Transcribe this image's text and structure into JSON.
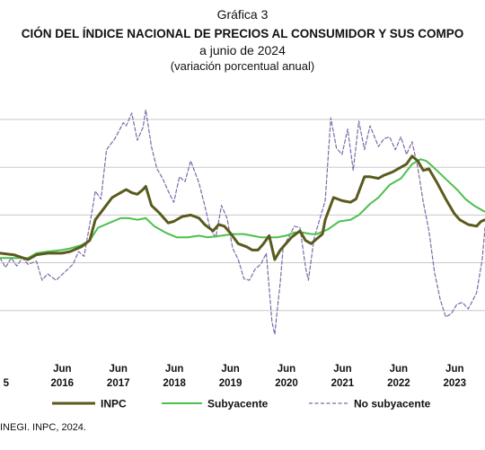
{
  "header": {
    "figure_label": "Gráfica 3",
    "title": "CIÓN DEL ÍNDICE NACIONAL DE PRECIOS AL CONSUMIDOR Y SUS COMPO",
    "subtitle": "a junio de 2024",
    "units": "(variación porcentual anual)"
  },
  "source": "INEGI. INPC, 2024.",
  "chart_data": {
    "type": "line",
    "xlim": [
      2015.35,
      2024.0
    ],
    "ylim": [
      -3.5,
      12.3
    ],
    "grid": "horizontal",
    "gridlines": [
      -1,
      2,
      5,
      8,
      11
    ],
    "ticks": [
      {
        "x": 2015.46,
        "top": "",
        "bottom": "5"
      },
      {
        "x": 2016.46,
        "top": "Jun",
        "bottom": "2016"
      },
      {
        "x": 2017.46,
        "top": "Jun",
        "bottom": "2017"
      },
      {
        "x": 2018.46,
        "top": "Jun",
        "bottom": "2018"
      },
      {
        "x": 2019.46,
        "top": "Jun",
        "bottom": "2019"
      },
      {
        "x": 2020.46,
        "top": "Jun",
        "bottom": "2020"
      },
      {
        "x": 2021.46,
        "top": "Jun",
        "bottom": "2021"
      },
      {
        "x": 2022.46,
        "top": "Jun",
        "bottom": "2022"
      },
      {
        "x": 2023.46,
        "top": "Jun",
        "bottom": "2023"
      }
    ],
    "legend_position": "bottom",
    "series": [
      {
        "name": "INPC",
        "color": "#5a5a1e",
        "style": "solid",
        "points": [
          [
            2015.35,
            2.6
          ],
          [
            2015.6,
            2.5
          ],
          [
            2015.85,
            2.2
          ],
          [
            2016.0,
            2.5
          ],
          [
            2016.2,
            2.6
          ],
          [
            2016.45,
            2.6
          ],
          [
            2016.6,
            2.7
          ],
          [
            2016.8,
            3.0
          ],
          [
            2016.95,
            3.4
          ],
          [
            2017.05,
            4.7
          ],
          [
            2017.2,
            5.4
          ],
          [
            2017.35,
            6.1
          ],
          [
            2017.5,
            6.4
          ],
          [
            2017.6,
            6.6
          ],
          [
            2017.7,
            6.4
          ],
          [
            2017.8,
            6.3
          ],
          [
            2017.9,
            6.6
          ],
          [
            2017.95,
            6.8
          ],
          [
            2018.05,
            5.6
          ],
          [
            2018.2,
            5.1
          ],
          [
            2018.35,
            4.5
          ],
          [
            2018.45,
            4.6
          ],
          [
            2018.6,
            4.9
          ],
          [
            2018.75,
            5.0
          ],
          [
            2018.9,
            4.8
          ],
          [
            2019.0,
            4.4
          ],
          [
            2019.15,
            4.0
          ],
          [
            2019.25,
            4.4
          ],
          [
            2019.35,
            4.3
          ],
          [
            2019.45,
            3.9
          ],
          [
            2019.6,
            3.2
          ],
          [
            2019.75,
            3.0
          ],
          [
            2019.85,
            2.8
          ],
          [
            2019.95,
            2.8
          ],
          [
            2020.05,
            3.2
          ],
          [
            2020.15,
            3.7
          ],
          [
            2020.25,
            2.2
          ],
          [
            2020.35,
            2.8
          ],
          [
            2020.45,
            3.2
          ],
          [
            2020.55,
            3.6
          ],
          [
            2020.7,
            4.0
          ],
          [
            2020.8,
            3.4
          ],
          [
            2020.9,
            3.2
          ],
          [
            2021.0,
            3.5
          ],
          [
            2021.1,
            3.8
          ],
          [
            2021.15,
            4.7
          ],
          [
            2021.3,
            6.1
          ],
          [
            2021.45,
            5.9
          ],
          [
            2021.6,
            5.8
          ],
          [
            2021.7,
            6.0
          ],
          [
            2021.85,
            7.4
          ],
          [
            2021.95,
            7.4
          ],
          [
            2022.1,
            7.3
          ],
          [
            2022.2,
            7.5
          ],
          [
            2022.35,
            7.7
          ],
          [
            2022.5,
            8.0
          ],
          [
            2022.6,
            8.2
          ],
          [
            2022.7,
            8.7
          ],
          [
            2022.8,
            8.4
          ],
          [
            2022.9,
            7.8
          ],
          [
            2023.0,
            7.9
          ],
          [
            2023.15,
            7.0
          ],
          [
            2023.3,
            6.0
          ],
          [
            2023.45,
            5.1
          ],
          [
            2023.55,
            4.7
          ],
          [
            2023.7,
            4.4
          ],
          [
            2023.85,
            4.3
          ],
          [
            2023.93,
            4.6
          ],
          [
            2024.0,
            4.7
          ]
        ]
      },
      {
        "name": "Subyacente",
        "color": "#4cc04c",
        "style": "solid",
        "points": [
          [
            2015.35,
            2.3
          ],
          [
            2015.6,
            2.3
          ],
          [
            2015.85,
            2.3
          ],
          [
            2016.0,
            2.6
          ],
          [
            2016.2,
            2.7
          ],
          [
            2016.45,
            2.8
          ],
          [
            2016.6,
            2.9
          ],
          [
            2016.8,
            3.1
          ],
          [
            2016.95,
            3.4
          ],
          [
            2017.1,
            4.2
          ],
          [
            2017.3,
            4.5
          ],
          [
            2017.5,
            4.8
          ],
          [
            2017.65,
            4.8
          ],
          [
            2017.8,
            4.7
          ],
          [
            2017.95,
            4.8
          ],
          [
            2018.1,
            4.3
          ],
          [
            2018.3,
            3.9
          ],
          [
            2018.5,
            3.6
          ],
          [
            2018.7,
            3.6
          ],
          [
            2018.9,
            3.7
          ],
          [
            2019.05,
            3.6
          ],
          [
            2019.3,
            3.7
          ],
          [
            2019.5,
            3.8
          ],
          [
            2019.7,
            3.8
          ],
          [
            2019.85,
            3.7
          ],
          [
            2020.0,
            3.6
          ],
          [
            2020.15,
            3.6
          ],
          [
            2020.3,
            3.6
          ],
          [
            2020.45,
            3.7
          ],
          [
            2020.6,
            3.9
          ],
          [
            2020.75,
            3.9
          ],
          [
            2020.9,
            3.8
          ],
          [
            2021.0,
            3.8
          ],
          [
            2021.2,
            4.1
          ],
          [
            2021.4,
            4.6
          ],
          [
            2021.6,
            4.7
          ],
          [
            2021.75,
            5.0
          ],
          [
            2021.95,
            5.7
          ],
          [
            2022.1,
            6.1
          ],
          [
            2022.3,
            6.9
          ],
          [
            2022.5,
            7.3
          ],
          [
            2022.7,
            8.2
          ],
          [
            2022.85,
            8.5
          ],
          [
            2022.95,
            8.4
          ],
          [
            2023.05,
            8.1
          ],
          [
            2023.2,
            7.6
          ],
          [
            2023.35,
            7.1
          ],
          [
            2023.5,
            6.6
          ],
          [
            2023.65,
            6.0
          ],
          [
            2023.8,
            5.6
          ],
          [
            2023.95,
            5.3
          ],
          [
            2024.0,
            5.2
          ]
        ]
      },
      {
        "name": "No subyacente",
        "color": "#7a6aa8",
        "style": "dashed",
        "points": [
          [
            2015.35,
            2.3
          ],
          [
            2015.45,
            1.7
          ],
          [
            2015.55,
            2.3
          ],
          [
            2015.65,
            1.8
          ],
          [
            2015.75,
            2.3
          ],
          [
            2015.85,
            1.9
          ],
          [
            2016.0,
            2.1
          ],
          [
            2016.1,
            0.9
          ],
          [
            2016.2,
            1.3
          ],
          [
            2016.35,
            0.9
          ],
          [
            2016.5,
            1.4
          ],
          [
            2016.65,
            1.9
          ],
          [
            2016.75,
            2.7
          ],
          [
            2016.85,
            2.4
          ],
          [
            2017.0,
            5.4
          ],
          [
            2017.05,
            6.5
          ],
          [
            2017.15,
            6.0
          ],
          [
            2017.25,
            9.1
          ],
          [
            2017.4,
            9.8
          ],
          [
            2017.55,
            10.8
          ],
          [
            2017.6,
            10.6
          ],
          [
            2017.7,
            11.4
          ],
          [
            2017.8,
            9.7
          ],
          [
            2017.9,
            10.5
          ],
          [
            2017.95,
            11.6
          ],
          [
            2018.05,
            9.3
          ],
          [
            2018.15,
            7.9
          ],
          [
            2018.25,
            7.3
          ],
          [
            2018.35,
            6.5
          ],
          [
            2018.45,
            5.8
          ],
          [
            2018.55,
            7.4
          ],
          [
            2018.65,
            7.1
          ],
          [
            2018.75,
            8.4
          ],
          [
            2018.9,
            7.0
          ],
          [
            2019.0,
            5.6
          ],
          [
            2019.1,
            4.1
          ],
          [
            2019.2,
            3.6
          ],
          [
            2019.3,
            5.6
          ],
          [
            2019.4,
            4.8
          ],
          [
            2019.5,
            2.9
          ],
          [
            2019.6,
            2.2
          ],
          [
            2019.7,
            1.0
          ],
          [
            2019.8,
            0.9
          ],
          [
            2019.9,
            1.6
          ],
          [
            2020.0,
            1.9
          ],
          [
            2020.1,
            2.6
          ],
          [
            2020.2,
            -1.7
          ],
          [
            2020.25,
            -2.5
          ],
          [
            2020.3,
            -0.8
          ],
          [
            2020.35,
            0.8
          ],
          [
            2020.4,
            3.0
          ],
          [
            2020.5,
            3.6
          ],
          [
            2020.6,
            4.3
          ],
          [
            2020.7,
            4.2
          ],
          [
            2020.8,
            1.7
          ],
          [
            2020.85,
            0.9
          ],
          [
            2020.95,
            3.5
          ],
          [
            2021.05,
            4.7
          ],
          [
            2021.15,
            5.9
          ],
          [
            2021.25,
            11.1
          ],
          [
            2021.35,
            9.2
          ],
          [
            2021.45,
            8.8
          ],
          [
            2021.55,
            10.4
          ],
          [
            2021.65,
            7.8
          ],
          [
            2021.75,
            10.9
          ],
          [
            2021.85,
            9.1
          ],
          [
            2021.95,
            10.6
          ],
          [
            2022.1,
            9.3
          ],
          [
            2022.2,
            9.8
          ],
          [
            2022.3,
            9.9
          ],
          [
            2022.4,
            9.1
          ],
          [
            2022.5,
            9.9
          ],
          [
            2022.6,
            8.8
          ],
          [
            2022.7,
            9.6
          ],
          [
            2022.8,
            8.0
          ],
          [
            2022.9,
            5.8
          ],
          [
            2023.0,
            4.0
          ],
          [
            2023.1,
            1.4
          ],
          [
            2023.2,
            -0.3
          ],
          [
            2023.3,
            -1.4
          ],
          [
            2023.4,
            -1.2
          ],
          [
            2023.5,
            -0.6
          ],
          [
            2023.6,
            -0.5
          ],
          [
            2023.7,
            -0.9
          ],
          [
            2023.85,
            0.1
          ],
          [
            2023.95,
            2.2
          ],
          [
            2024.0,
            4.2
          ]
        ]
      }
    ]
  }
}
